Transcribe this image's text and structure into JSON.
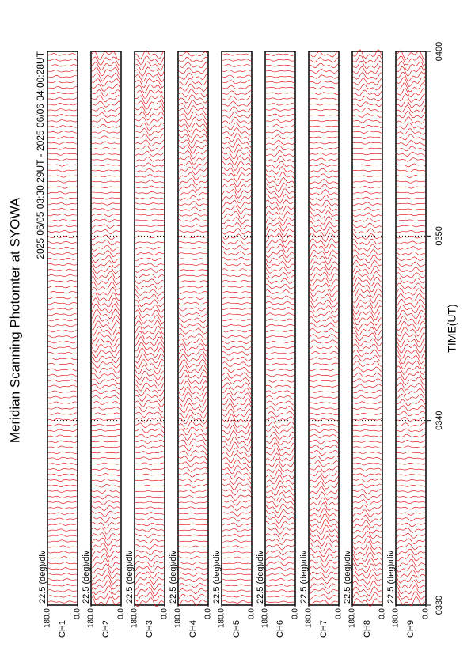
{
  "chart_data": {
    "type": "line",
    "title": "Meridian Scanning Photomter at SYOWA",
    "subtitle": "2025 06/05 03:30:29UT - 2025 06/06 04:00:28UT",
    "xlabel": "TIME(UT)",
    "xlim": [
      0,
      30
    ],
    "xticks": [
      {
        "value": 0,
        "label": "0330"
      },
      {
        "value": 10,
        "label": "0340"
      },
      {
        "value": 20,
        "label": "0350"
      },
      {
        "value": 30,
        "label": "0400"
      }
    ],
    "color": "#e00000",
    "panels": [
      {
        "label": "CH1",
        "scale": "22.5 (deg)/div",
        "ylim": [
          0,
          180
        ],
        "yticks": [
          {
            "value": 180,
            "label": "180.0"
          },
          {
            "value": 0,
            "label": "0.0"
          }
        ]
      },
      {
        "label": "CH2",
        "scale": "22.5 (deg)/div",
        "ylim": [
          0,
          180
        ],
        "yticks": [
          {
            "value": 180,
            "label": "180.0"
          },
          {
            "value": 0,
            "label": "0.0"
          }
        ]
      },
      {
        "label": "CH3",
        "scale": "22.5 (deg)/div",
        "ylim": [
          0,
          180
        ],
        "yticks": [
          {
            "value": 180,
            "label": "180.0"
          },
          {
            "value": 0,
            "label": "0.0"
          }
        ]
      },
      {
        "label": "CH4",
        "scale": "22.5 (deg)/div",
        "ylim": [
          0,
          180
        ],
        "yticks": [
          {
            "value": 180,
            "label": "180.0"
          },
          {
            "value": 0,
            "label": "0.0"
          }
        ]
      },
      {
        "label": "CH5",
        "scale": "22.5 (deg)/div",
        "ylim": [
          0,
          180
        ],
        "yticks": [
          {
            "value": 180,
            "label": "180.0"
          },
          {
            "value": 0,
            "label": "0.0"
          }
        ]
      },
      {
        "label": "CH6",
        "scale": "22.5 (deg)/div",
        "ylim": [
          0,
          180
        ],
        "yticks": [
          {
            "value": 180,
            "label": "180.0"
          },
          {
            "value": 0,
            "label": "0.0"
          }
        ]
      },
      {
        "label": "CH7",
        "scale": "22.5 (deg)/div",
        "ylim": [
          0,
          180
        ],
        "yticks": [
          {
            "value": 180,
            "label": "180.0"
          },
          {
            "value": 0,
            "label": "0.0"
          }
        ]
      },
      {
        "label": "CH8",
        "scale": "22.5 (deg)/div",
        "ylim": [
          0,
          180
        ],
        "yticks": [
          {
            "value": 180,
            "label": "180.0"
          },
          {
            "value": 0,
            "label": "0.0"
          }
        ]
      },
      {
        "label": "CH9",
        "scale": "22.5 (deg)/div",
        "ylim": [
          0,
          180
        ],
        "yticks": [
          {
            "value": 180,
            "label": "180.0"
          },
          {
            "value": 0,
            "label": "0.0"
          }
        ]
      }
    ]
  }
}
